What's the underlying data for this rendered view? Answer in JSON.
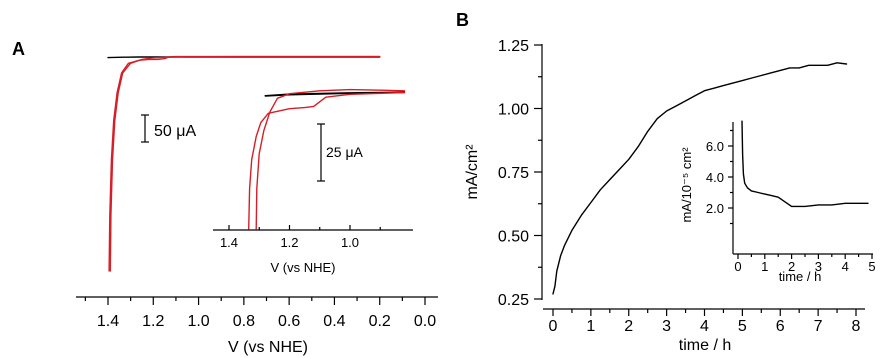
{
  "panel_a_label": "A",
  "panel_b_label": "B",
  "chart_data": [
    {
      "id": "A-main",
      "type": "line",
      "xlabel": "V (vs NHE)",
      "xticks": [
        "1.4",
        "1.2",
        "1.0",
        "0.8",
        "0.6",
        "0.4",
        "0.2",
        "0.0"
      ],
      "xlim": [
        1.48,
        -0.02
      ],
      "x_reversed": true,
      "scale_bar_label": "50 μA",
      "colors": {
        "black": "#000000",
        "red": "#d51f26"
      },
      "series": [
        {
          "color": "black",
          "points": [
            [
              1.4,
              -0.8
            ],
            [
              1.33,
              -0.3
            ],
            [
              1.26,
              0
            ],
            [
              0.8,
              0
            ],
            [
              0.4,
              0
            ],
            [
              0.2,
              0
            ]
          ]
        },
        {
          "color": "red",
          "points": [
            [
              1.395,
              -270
            ],
            [
              1.392,
              -200
            ],
            [
              1.385,
              -130
            ],
            [
              1.375,
              -80
            ],
            [
              1.36,
              -45
            ],
            [
              1.34,
              -20
            ],
            [
              1.31,
              -8
            ],
            [
              1.26,
              -4
            ],
            [
              1.22,
              -3
            ],
            [
              1.18,
              -3
            ],
            [
              1.15,
              -2
            ],
            [
              1.13,
              0
            ],
            [
              1.1,
              0.5
            ],
            [
              0.8,
              0.5
            ],
            [
              0.4,
              0.5
            ],
            [
              0.2,
              0.5
            ]
          ]
        },
        {
          "color": "red",
          "points": [
            [
              1.39,
              -270
            ],
            [
              1.387,
              -200
            ],
            [
              1.38,
              -130
            ],
            [
              1.37,
              -80
            ],
            [
              1.355,
              -45
            ],
            [
              1.335,
              -20
            ],
            [
              1.3,
              -8
            ],
            [
              1.25,
              -3
            ],
            [
              1.2,
              -1
            ],
            [
              1.1,
              0.2
            ],
            [
              0.8,
              0.5
            ],
            [
              0.2,
              0.5
            ]
          ]
        }
      ]
    },
    {
      "id": "A-inset",
      "type": "line",
      "xlabel": "V (vs NHE)",
      "xticks": [
        "1.4",
        "1.2",
        "1.0"
      ],
      "xlim": [
        1.4,
        0.82
      ],
      "x_reversed": true,
      "scale_bar_label": "25 μA",
      "series": [
        {
          "color": "black",
          "points": [
            [
              1.28,
              0
            ],
            [
              1.2,
              1.0
            ],
            [
              1.0,
              2.3
            ],
            [
              0.82,
              3.0
            ]
          ]
        },
        {
          "color": "black",
          "points": [
            [
              1.28,
              0.3
            ],
            [
              1.2,
              1.6
            ],
            [
              1.0,
              2.8
            ],
            [
              0.82,
              3.3
            ]
          ]
        },
        {
          "color": "red",
          "points": [
            [
              1.335,
              -115
            ],
            [
              1.332,
              -80
            ],
            [
              1.325,
              -55
            ],
            [
              1.31,
              -35
            ],
            [
              1.295,
              -23
            ],
            [
              1.27,
              -15
            ],
            [
              1.2,
              -11
            ],
            [
              1.15,
              -10
            ],
            [
              1.12,
              -9
            ],
            [
              1.1,
              -5
            ],
            [
              1.08,
              -1
            ],
            [
              1.0,
              1.5
            ],
            [
              0.82,
              3.0
            ]
          ]
        },
        {
          "color": "red",
          "points": [
            [
              1.31,
              -115
            ],
            [
              1.308,
              -80
            ],
            [
              1.3,
              -50
            ],
            [
              1.285,
              -30
            ],
            [
              1.265,
              -14
            ],
            [
              1.24,
              -2
            ],
            [
              1.2,
              2
            ],
            [
              1.1,
              4.5
            ],
            [
              1.0,
              5.5
            ],
            [
              0.9,
              5.0
            ],
            [
              0.82,
              4.5
            ]
          ]
        }
      ]
    },
    {
      "id": "B-main",
      "type": "line",
      "xlabel": "time / h",
      "ylabel": "mA/cm²",
      "xticks": [
        "0",
        "1",
        "2",
        "3",
        "4",
        "5",
        "6",
        "7",
        "8"
      ],
      "yticks": [
        "0.25",
        "0.50",
        "0.75",
        "1.00",
        "1.25"
      ],
      "xlim": [
        -0.1,
        8.1
      ],
      "ylim": [
        0.25,
        1.25
      ],
      "series": [
        {
          "color": "black",
          "points": [
            [
              0.0,
              0.27
            ],
            [
              0.05,
              0.3
            ],
            [
              0.1,
              0.36
            ],
            [
              0.2,
              0.42
            ],
            [
              0.3,
              0.46
            ],
            [
              0.5,
              0.52
            ],
            [
              0.75,
              0.58
            ],
            [
              1.0,
              0.63
            ],
            [
              1.25,
              0.68
            ],
            [
              1.5,
              0.72
            ],
            [
              1.75,
              0.76
            ],
            [
              2.0,
              0.8
            ],
            [
              2.25,
              0.85
            ],
            [
              2.5,
              0.91
            ],
            [
              2.75,
              0.96
            ],
            [
              3.0,
              0.99
            ],
            [
              3.25,
              1.01
            ],
            [
              3.5,
              1.03
            ],
            [
              3.75,
              1.05
            ],
            [
              4.0,
              1.07
            ],
            [
              4.25,
              1.08
            ],
            [
              4.5,
              1.09
            ],
            [
              4.75,
              1.1
            ],
            [
              5.0,
              1.11
            ],
            [
              5.25,
              1.12
            ],
            [
              5.5,
              1.13
            ],
            [
              5.75,
              1.14
            ],
            [
              6.0,
              1.15
            ],
            [
              6.25,
              1.16
            ],
            [
              6.5,
              1.16
            ],
            [
              6.75,
              1.17
            ],
            [
              7.0,
              1.17
            ],
            [
              7.25,
              1.17
            ],
            [
              7.5,
              1.18
            ],
            [
              7.75,
              1.175
            ]
          ]
        }
      ]
    },
    {
      "id": "B-inset",
      "type": "line",
      "xlabel": "time / h",
      "ylabel": "mA/10⁻⁵ cm²",
      "xticks": [
        "0",
        "1",
        "2",
        "3",
        "4",
        "5"
      ],
      "yticks": [
        "2.0",
        "4.0",
        "6.0"
      ],
      "xlim": [
        -0.1,
        5.1
      ],
      "ylim": [
        0.9,
        8.0
      ],
      "series": [
        {
          "color": "black",
          "points": [
            [
              0.15,
              7.6
            ],
            [
              0.17,
              5.5
            ],
            [
              0.2,
              4.2
            ],
            [
              0.25,
              3.6
            ],
            [
              0.35,
              3.3
            ],
            [
              0.5,
              3.1
            ],
            [
              0.75,
              3.0
            ],
            [
              1.0,
              2.9
            ],
            [
              1.25,
              2.8
            ],
            [
              1.5,
              2.7
            ],
            [
              1.75,
              2.4
            ],
            [
              2.0,
              2.1
            ],
            [
              2.25,
              2.1
            ],
            [
              2.5,
              2.1
            ],
            [
              3.0,
              2.2
            ],
            [
              3.5,
              2.2
            ],
            [
              4.0,
              2.3
            ],
            [
              4.5,
              2.3
            ],
            [
              4.85,
              2.3
            ]
          ]
        }
      ]
    }
  ]
}
